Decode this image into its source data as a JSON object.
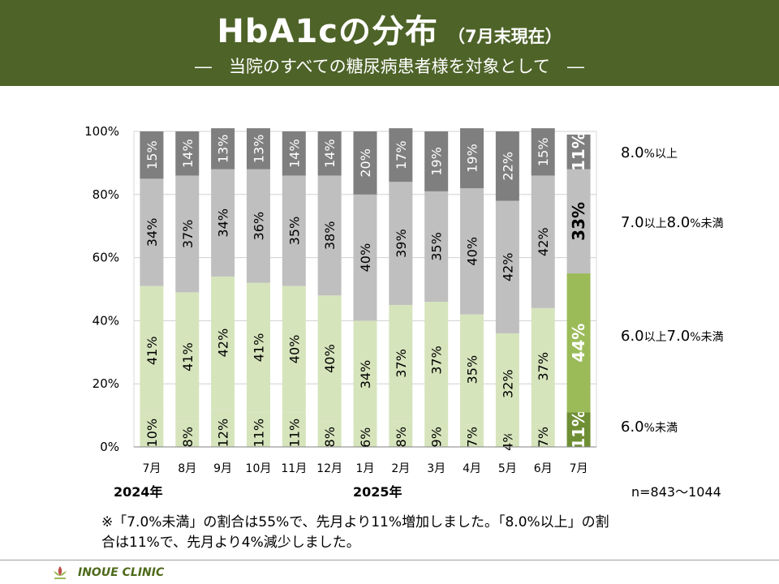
{
  "header": {
    "title": "HbA1cの分布",
    "title_sub": "（7月末現在）",
    "subtitle": "―　当院のすべての糖尿病患者様を対象として　―"
  },
  "chart_data": {
    "type": "bar",
    "stacked": true,
    "categories": [
      "7月",
      "8月",
      "9月",
      "10月",
      "11月",
      "12月",
      "1月",
      "2月",
      "3月",
      "4月",
      "5月",
      "6月",
      "7月"
    ],
    "series": [
      {
        "name_main": "6.0",
        "name_unit": "%未満",
        "values": [
          10,
          8,
          12,
          11,
          11,
          8,
          6,
          8,
          9,
          7,
          4,
          7,
          11
        ],
        "labels": [
          "10%",
          "8%",
          "12%",
          "11%",
          "11%",
          "8%",
          "6%",
          "8%",
          "9%",
          "7%",
          "4%",
          "7%",
          "11%"
        ]
      },
      {
        "name_main": "6.0",
        "name_unit": "以上",
        "name_main2": "7.0",
        "name_unit2": "%未満",
        "values": [
          41,
          41,
          42,
          41,
          40,
          40,
          34,
          37,
          37,
          35,
          32,
          37,
          44
        ],
        "labels": [
          "41%",
          "41%",
          "42%",
          "41%",
          "40%",
          "40%",
          "34%",
          "37%",
          "37%",
          "35%",
          "32%",
          "37%",
          "44%"
        ]
      },
      {
        "name_main": "7.0",
        "name_unit": "以上",
        "name_main2": "8.0",
        "name_unit2": "%未満",
        "values": [
          34,
          37,
          34,
          36,
          35,
          38,
          40,
          39,
          35,
          40,
          42,
          42,
          33
        ],
        "labels": [
          "34%",
          "37%",
          "34%",
          "36%",
          "35%",
          "38%",
          "40%",
          "39%",
          "35%",
          "40%",
          "42%",
          "42%",
          "33%"
        ]
      },
      {
        "name_main": "8.0",
        "name_unit": "%以上",
        "values": [
          15,
          14,
          13,
          13,
          14,
          14,
          20,
          17,
          19,
          19,
          22,
          15,
          11
        ],
        "labels": [
          "15%",
          "14%",
          "13%",
          "13%",
          "14%",
          "14%",
          "20%",
          "17%",
          "19%",
          "19%",
          "22%",
          "15%",
          "11%"
        ]
      }
    ],
    "yticks": [
      "0%",
      "20%",
      "40%",
      "60%",
      "80%",
      "100%"
    ],
    "ylim": [
      0,
      100
    ],
    "colors": {
      "normal": [
        "#d6e4bc",
        "#d6e4bc",
        "#bfbfbf",
        "#7f7f7f"
      ],
      "highlight": [
        "#6f8f34",
        "#9bbb59",
        "#bfbfbf",
        "#7f7f7f"
      ],
      "first_segment_normal": "#d6e4bc"
    },
    "highlight_index": 12,
    "years": [
      "2024年",
      "2025年"
    ],
    "n": "n=843～1044"
  },
  "note": "※「7.0%未満」の割合は55%で、先月より11%増加しました。「8.0%以上」の割合は11%で、先月より4%減少しました。",
  "footer": {
    "clinic": "INOUE CLINIC"
  }
}
